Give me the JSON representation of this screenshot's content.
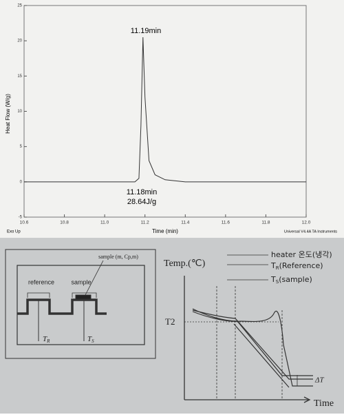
{
  "chart_data": {
    "type": "line",
    "ylabel": "Heat Flow (W/g)",
    "xlabel": "Time (min)",
    "xlim": [
      10.6,
      12.0
    ],
    "xticks": [
      10.6,
      10.8,
      {
        "value": 11,
        "label": "11.0"
      },
      11.2,
      11.4,
      11.6,
      11.8,
      {
        "value": 12,
        "label": "12.0"
      }
    ],
    "ylim": [
      -5,
      25
    ],
    "yticks": [
      -5,
      0,
      5,
      10,
      15,
      20,
      25
    ],
    "annotations": [
      "11.19min",
      "11.18min",
      "28.64J/g"
    ],
    "footer_left": "Exo Up",
    "footer_right": "Universal V4.4A TA Instruments",
    "series": [
      {
        "color": "#333333",
        "x": [
          10.6,
          11.0,
          11.15,
          11.17,
          11.18,
          11.19,
          11.2,
          11.22,
          11.25,
          11.3,
          11.4,
          11.6,
          12.0
        ],
        "values": [
          0,
          0,
          0,
          0.5,
          8,
          20.5,
          12,
          3,
          1,
          0.3,
          0,
          0,
          0
        ]
      }
    ]
  },
  "diagram": {
    "left": {
      "sample_label": "sample (m, Cp,m)",
      "reference": "reference",
      "sample": "sample",
      "tr": {
        "main": "T",
        "sub": "R"
      },
      "ts": {
        "main": "T",
        "sub": "S"
      }
    },
    "right": {
      "ylabel": "Temp.(℃)",
      "t2": "T2",
      "delta": "ΔT",
      "xlabel": "Time",
      "legend": [
        {
          "main": "heater 온도(냉각)",
          "sub": "",
          "rest": ""
        },
        {
          "main": "T",
          "sub": "R",
          "rest": "(Reference)"
        },
        {
          "main": "T",
          "sub": "S",
          "rest": "(sample)"
        }
      ]
    }
  }
}
